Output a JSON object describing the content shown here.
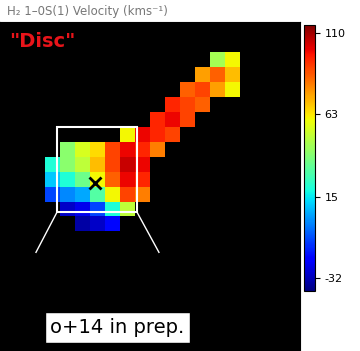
{
  "chart_data": {
    "type": "heatmap",
    "title": "H₂ 1–0S(1) Velocity (kms⁻¹)",
    "annotations": [
      "\"Disc\"",
      "o+14 in prep."
    ],
    "color": "jet",
    "tick_labels": false,
    "xlim": [
      0,
      20
    ],
    "ylim": [
      22,
      0
    ],
    "cells": [
      [
        null,
        null,
        null,
        null,
        null,
        null,
        null,
        null,
        null,
        null,
        null,
        null,
        null,
        null,
        null,
        null,
        null,
        null,
        null,
        null
      ],
      [
        null,
        null,
        null,
        null,
        null,
        null,
        null,
        null,
        null,
        null,
        null,
        null,
        null,
        null,
        null,
        null,
        null,
        null,
        null,
        null
      ],
      [
        null,
        null,
        null,
        null,
        null,
        null,
        null,
        null,
        null,
        null,
        null,
        null,
        null,
        null,
        45,
        60,
        null,
        null,
        null,
        null
      ],
      [
        null,
        null,
        null,
        null,
        null,
        null,
        null,
        null,
        null,
        null,
        null,
        null,
        null,
        75,
        85,
        70,
        null,
        null,
        null,
        null
      ],
      [
        null,
        null,
        null,
        null,
        null,
        null,
        null,
        null,
        null,
        null,
        null,
        null,
        85,
        90,
        75,
        60,
        null,
        null,
        null,
        null
      ],
      [
        null,
        null,
        null,
        null,
        null,
        null,
        null,
        null,
        null,
        null,
        null,
        95,
        90,
        85,
        null,
        null,
        null,
        null,
        null,
        null
      ],
      [
        null,
        null,
        null,
        null,
        null,
        null,
        null,
        null,
        null,
        null,
        95,
        100,
        90,
        null,
        null,
        null,
        null,
        null,
        null,
        null
      ],
      [
        null,
        null,
        null,
        null,
        null,
        null,
        null,
        null,
        60,
        100,
        95,
        90,
        null,
        null,
        null,
        null,
        null,
        null,
        null,
        null
      ],
      [
        null,
        null,
        null,
        null,
        40,
        55,
        65,
        90,
        100,
        95,
        80,
        null,
        null,
        null,
        null,
        null,
        null,
        null,
        null,
        null
      ],
      [
        null,
        null,
        null,
        20,
        40,
        50,
        70,
        90,
        105,
        100,
        null,
        null,
        null,
        null,
        null,
        null,
        null,
        null,
        null,
        null
      ],
      [
        null,
        null,
        null,
        10,
        20,
        35,
        60,
        85,
        100,
        95,
        null,
        null,
        null,
        null,
        null,
        null,
        null,
        null,
        null,
        null
      ],
      [
        null,
        null,
        null,
        -10,
        0,
        5,
        30,
        60,
        90,
        80,
        null,
        null,
        null,
        null,
        null,
        null,
        null,
        null,
        null,
        null
      ],
      [
        null,
        null,
        null,
        null,
        -30,
        -25,
        -10,
        20,
        50,
        null,
        null,
        null,
        null,
        null,
        null,
        null,
        null,
        null,
        null,
        null
      ],
      [
        null,
        null,
        null,
        null,
        null,
        -35,
        -30,
        -20,
        null,
        null,
        null,
        null,
        null,
        null,
        null,
        null,
        null,
        null,
        null,
        null
      ],
      [
        null,
        null,
        null,
        null,
        null,
        null,
        null,
        null,
        null,
        null,
        null,
        null,
        null,
        null,
        null,
        null,
        null,
        null,
        null,
        null
      ],
      [
        null,
        null,
        null,
        null,
        null,
        null,
        null,
        null,
        null,
        null,
        null,
        null,
        null,
        null,
        null,
        null,
        null,
        null,
        null,
        null
      ],
      [
        null,
        null,
        null,
        null,
        null,
        null,
        null,
        null,
        null,
        null,
        null,
        null,
        null,
        null,
        null,
        null,
        null,
        null,
        null,
        null
      ],
      [
        null,
        null,
        null,
        null,
        null,
        null,
        null,
        null,
        null,
        null,
        null,
        null,
        null,
        null,
        null,
        null,
        null,
        null,
        null,
        null
      ],
      [
        null,
        null,
        null,
        null,
        null,
        null,
        null,
        null,
        null,
        null,
        null,
        null,
        null,
        null,
        null,
        null,
        null,
        null,
        null,
        null
      ],
      [
        null,
        null,
        null,
        null,
        null,
        null,
        null,
        null,
        null,
        null,
        null,
        null,
        null,
        null,
        null,
        null,
        null,
        null,
        null,
        null
      ],
      [
        null,
        null,
        null,
        null,
        null,
        null,
        null,
        null,
        null,
        null,
        null,
        null,
        null,
        null,
        null,
        null,
        null,
        null,
        null,
        null
      ],
      [
        null,
        null,
        null,
        null,
        null,
        null,
        null,
        null,
        null,
        null,
        null,
        null,
        null,
        null,
        null,
        null,
        null,
        null,
        null,
        null
      ]
    ],
    "colorbar": {
      "range": [
        -40,
        115
      ],
      "ticks": [
        110,
        63,
        15,
        -32
      ]
    }
  }
}
